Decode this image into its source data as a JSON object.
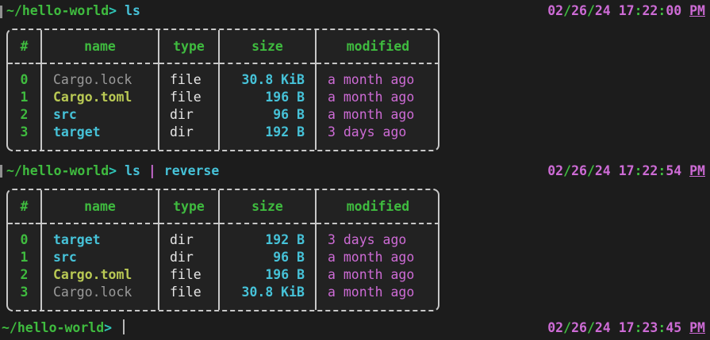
{
  "colors": {
    "background": "#1c1c1c",
    "green": "#3fbb3f",
    "cyan": "#46c2d8",
    "teal_prompt_symbol": "#2fc5b7",
    "magenta": "#cd6bd5",
    "yellow": "#b9c954",
    "gray": "#9a9a9a",
    "white": "#e6e6e6",
    "table_border": "#c8c8c8",
    "cursor": "#b8b8b8"
  },
  "prompts": [
    {
      "path": "~/hello-world",
      "symbol": ">",
      "command": [
        {
          "text": "ls",
          "role": "command"
        }
      ],
      "timestamp": "02/26/24 17:22:00 PM",
      "cursor": false
    },
    {
      "path": "~/hello-world",
      "symbol": ">",
      "command": [
        {
          "text": "ls",
          "role": "command"
        },
        {
          "text": "|",
          "role": "pipe"
        },
        {
          "text": "reverse",
          "role": "command"
        }
      ],
      "timestamp": "02/26/24 17:22:54 PM",
      "cursor": false
    },
    {
      "path": "~/hello-world",
      "symbol": ">",
      "command": [],
      "timestamp": "02/26/24 17:23:45 PM",
      "cursor": true
    }
  ],
  "tables": [
    {
      "columns": [
        "#",
        "name",
        "type",
        "size",
        "modified"
      ],
      "rows": [
        {
          "index": "0",
          "name": "Cargo.lock",
          "name_color": "gray",
          "type": "file",
          "size": "30.8 KiB",
          "modified": "a month ago"
        },
        {
          "index": "1",
          "name": "Cargo.toml",
          "name_color": "yellow",
          "type": "file",
          "size": "196 B",
          "modified": "a month ago"
        },
        {
          "index": "2",
          "name": "src",
          "name_color": "cyan",
          "type": "dir",
          "size": "96 B",
          "modified": "a month ago"
        },
        {
          "index": "3",
          "name": "target",
          "name_color": "cyan",
          "type": "dir",
          "size": "192 B",
          "modified": "3 days ago"
        }
      ]
    },
    {
      "columns": [
        "#",
        "name",
        "type",
        "size",
        "modified"
      ],
      "rows": [
        {
          "index": "0",
          "name": "target",
          "name_color": "cyan",
          "type": "dir",
          "size": "192 B",
          "modified": "3 days ago"
        },
        {
          "index": "1",
          "name": "src",
          "name_color": "cyan",
          "type": "dir",
          "size": "96 B",
          "modified": "a month ago"
        },
        {
          "index": "2",
          "name": "Cargo.toml",
          "name_color": "yellow",
          "type": "file",
          "size": "196 B",
          "modified": "a month ago"
        },
        {
          "index": "3",
          "name": "Cargo.lock",
          "name_color": "gray",
          "type": "file",
          "size": "30.8 KiB",
          "modified": "a month ago"
        }
      ]
    }
  ]
}
